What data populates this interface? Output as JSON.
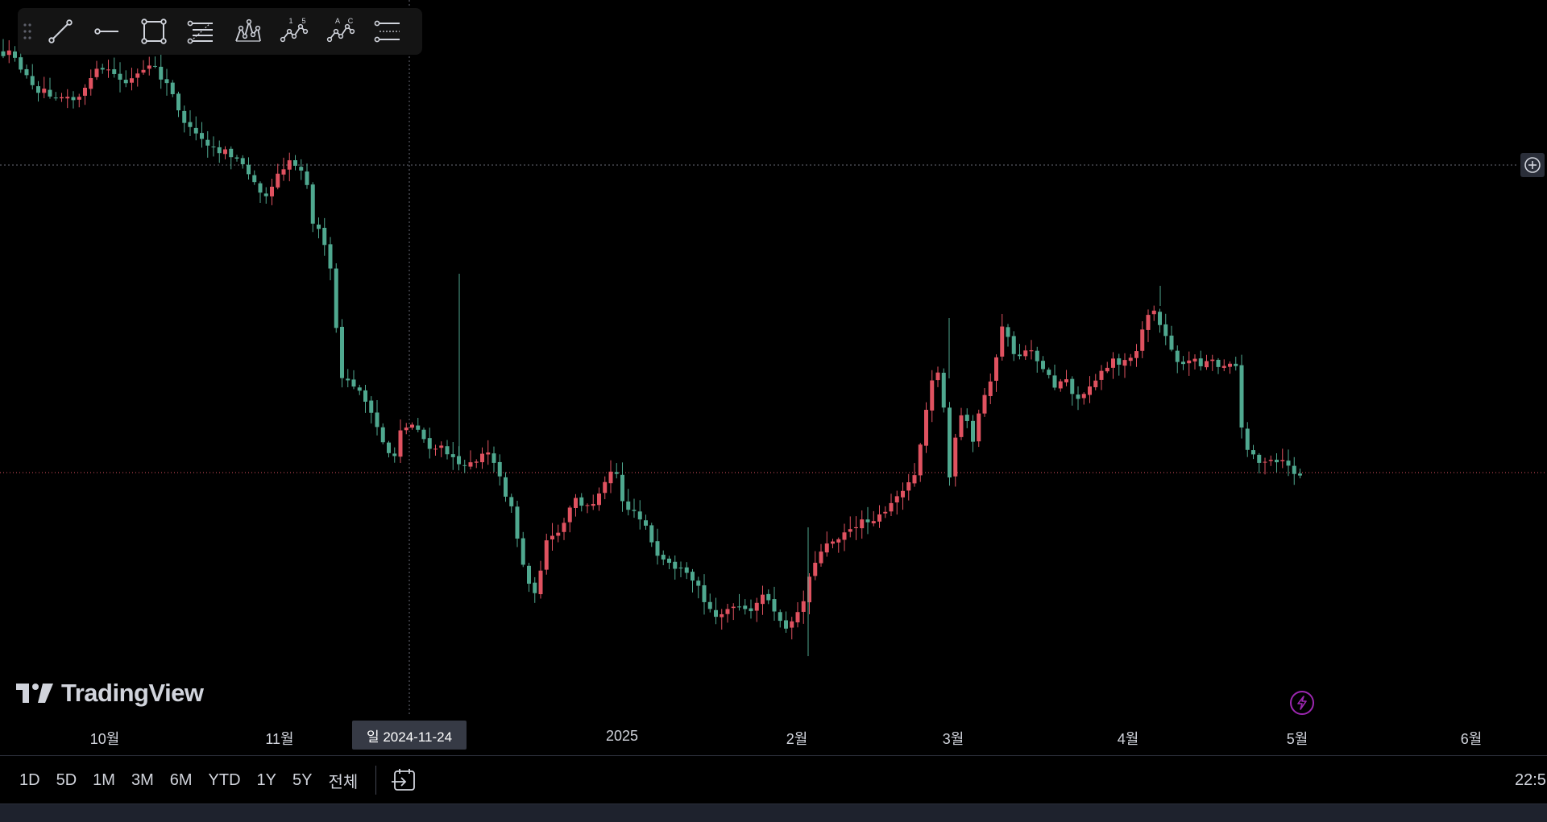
{
  "colors": {
    "up": "#e05260",
    "down": "#4fa88f",
    "background": "#000000",
    "text": "#d1d4dc",
    "accent": "#9c27b0"
  },
  "toolbar": {
    "items": [
      "trend-line-icon",
      "horizontal-ray-icon",
      "rectangle-icon",
      "fib-retracement-icon",
      "elliott-wave-icon",
      "xabcd-pattern-icon",
      "abcd-pattern-icon",
      "parallel-channel-icon"
    ],
    "wave_labels": [
      "1",
      "5"
    ],
    "abc_labels": [
      "A",
      "C"
    ]
  },
  "logo": {
    "text": "TradingView"
  },
  "crosshair": {
    "date_label": "일 2024-11-24"
  },
  "time_axis": {
    "labels": [
      {
        "text": "10월",
        "date": "2024-10-01"
      },
      {
        "text": "11월",
        "date": "2024-11-01"
      },
      {
        "text": "2025",
        "date": "2025-01-01"
      },
      {
        "text": "2월",
        "date": "2025-02-01"
      },
      {
        "text": "3월",
        "date": "2025-03-01"
      },
      {
        "text": "4월",
        "date": "2025-04-01"
      },
      {
        "text": "5월",
        "date": "2025-05-01"
      },
      {
        "text": "6월",
        "date": "2025-06-01"
      }
    ]
  },
  "ranges": [
    "1D",
    "5D",
    "1M",
    "3M",
    "6M",
    "YTD",
    "1Y",
    "5Y",
    "전체"
  ],
  "status": {
    "time": "22:5"
  }
}
